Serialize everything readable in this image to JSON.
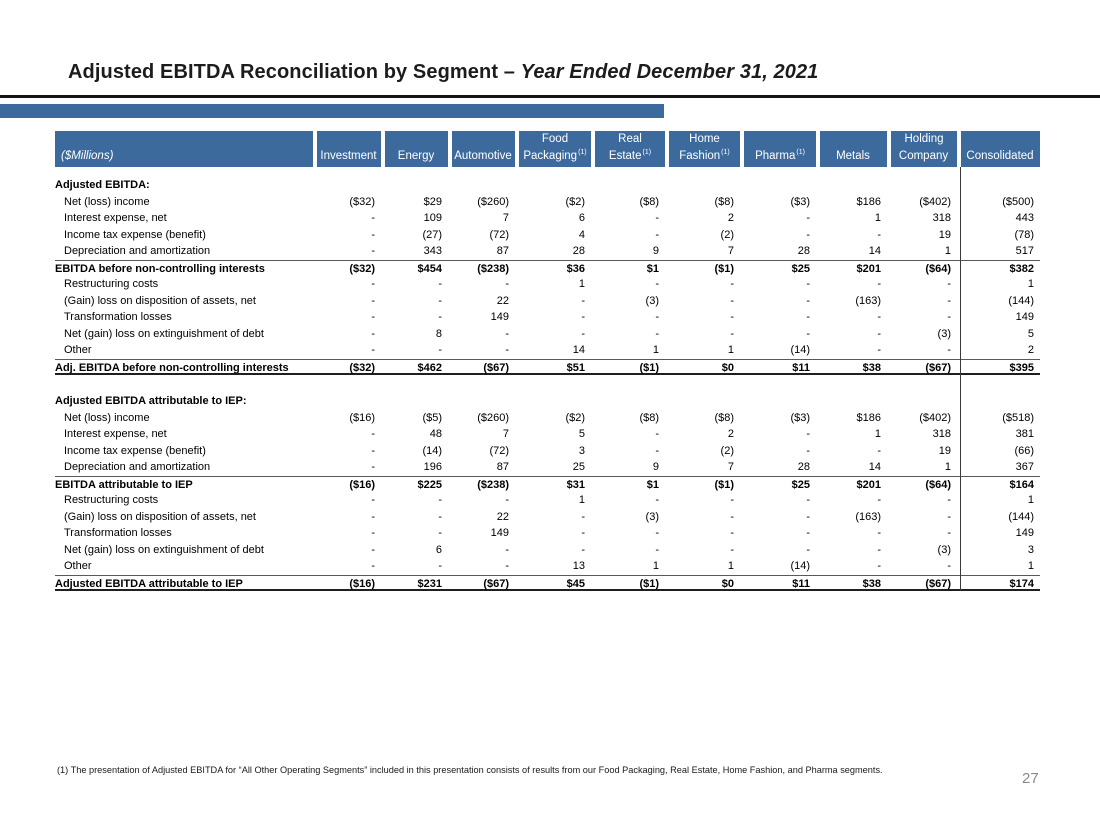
{
  "title": {
    "prefix": "Adjusted EBITDA Reconciliation by Segment – ",
    "italic": "Year Ended December 31, 2021"
  },
  "footnote": "(1) The presentation of Adjusted EBITDA for “All Other Operating Segments” included in this presentation consists of results from our Food Packaging, Real Estate, Home Fashion, and Pharma segments.",
  "page_number": "27",
  "colors": {
    "accent_blue": "#3c6a9c"
  },
  "table": {
    "unit_label": "($Millions)",
    "columns": [
      {
        "line1": "",
        "line2": "Investment",
        "sup": ""
      },
      {
        "line1": "",
        "line2": "Energy",
        "sup": ""
      },
      {
        "line1": "",
        "line2": "Automotive",
        "sup": ""
      },
      {
        "line1": "Food",
        "line2": "Packaging",
        "sup": "(1)"
      },
      {
        "line1": "Real",
        "line2": "Estate",
        "sup": "(1)"
      },
      {
        "line1": "Home",
        "line2": "Fashion",
        "sup": "(1)"
      },
      {
        "line1": "",
        "line2": "Pharma",
        "sup": "(1)"
      },
      {
        "line1": "",
        "line2": "Metals",
        "sup": ""
      },
      {
        "line1": "Holding",
        "line2": "Company",
        "sup": ""
      },
      {
        "line1": "",
        "line2": "Consolidated",
        "sup": ""
      }
    ],
    "rows": [
      {
        "type": "section",
        "label": "Adjusted EBITDA:",
        "values": []
      },
      {
        "type": "item",
        "label": "Net (loss) income",
        "values": [
          "($32)",
          "$29",
          "($260)",
          "($2)",
          "($8)",
          "($8)",
          "($3)",
          "$186",
          "($402)",
          "($500)"
        ]
      },
      {
        "type": "item",
        "label": "Interest expense, net",
        "values": [
          "-",
          "109",
          "7",
          "6",
          "-",
          "2",
          "-",
          "1",
          "318",
          "443"
        ]
      },
      {
        "type": "item",
        "label": "Income tax expense (benefit)",
        "values": [
          "-",
          "(27)",
          "(72)",
          "4",
          "-",
          "(2)",
          "-",
          "-",
          "19",
          "(78)"
        ]
      },
      {
        "type": "item",
        "label": "Depreciation and amortization",
        "values": [
          "-",
          "343",
          "87",
          "28",
          "9",
          "7",
          "28",
          "14",
          "1",
          "517"
        ]
      },
      {
        "type": "total",
        "label": "EBITDA before non-controlling interests",
        "values": [
          "($32)",
          "$454",
          "($238)",
          "$36",
          "$1",
          "($1)",
          "$25",
          "$201",
          "($64)",
          "$382"
        ]
      },
      {
        "type": "item",
        "label": "Restructuring costs",
        "values": [
          "-",
          "-",
          "-",
          "1",
          "-",
          "-",
          "-",
          "-",
          "-",
          "1"
        ]
      },
      {
        "type": "item",
        "label": "(Gain) loss on disposition of assets, net",
        "values": [
          "-",
          "-",
          "22",
          "-",
          "(3)",
          "-",
          "-",
          "(163)",
          "-",
          "(144)"
        ]
      },
      {
        "type": "item",
        "label": "Transformation losses",
        "values": [
          "-",
          "-",
          "149",
          "-",
          "-",
          "-",
          "-",
          "-",
          "-",
          "149"
        ]
      },
      {
        "type": "item",
        "label": "Net (gain) loss on extinguishment of debt",
        "values": [
          "-",
          "8",
          "-",
          "-",
          "-",
          "-",
          "-",
          "-",
          "(3)",
          "5"
        ]
      },
      {
        "type": "item",
        "label": "Other",
        "values": [
          "-",
          "-",
          "-",
          "14",
          "1",
          "1",
          "(14)",
          "-",
          "-",
          "2"
        ]
      },
      {
        "type": "grand",
        "label": "Adj. EBITDA before non-controlling interests",
        "values": [
          "($32)",
          "$462",
          "($67)",
          "$51",
          "($1)",
          "$0",
          "$11",
          "$38",
          "($67)",
          "$395"
        ]
      },
      {
        "type": "spacer",
        "label": "",
        "values": []
      },
      {
        "type": "section",
        "label": "Adjusted EBITDA attributable to IEP:",
        "values": []
      },
      {
        "type": "item",
        "label": "Net (loss) income",
        "values": [
          "($16)",
          "($5)",
          "($260)",
          "($2)",
          "($8)",
          "($8)",
          "($3)",
          "$186",
          "($402)",
          "($518)"
        ]
      },
      {
        "type": "item",
        "label": "Interest expense, net",
        "values": [
          "-",
          "48",
          "7",
          "5",
          "-",
          "2",
          "-",
          "1",
          "318",
          "381"
        ]
      },
      {
        "type": "item",
        "label": "Income tax expense (benefit)",
        "values": [
          "-",
          "(14)",
          "(72)",
          "3",
          "-",
          "(2)",
          "-",
          "-",
          "19",
          "(66)"
        ]
      },
      {
        "type": "item",
        "label": "Depreciation and amortization",
        "values": [
          "-",
          "196",
          "87",
          "25",
          "9",
          "7",
          "28",
          "14",
          "1",
          "367"
        ]
      },
      {
        "type": "total",
        "label": "EBITDA attributable to IEP",
        "values": [
          "($16)",
          "$225",
          "($238)",
          "$31",
          "$1",
          "($1)",
          "$25",
          "$201",
          "($64)",
          "$164"
        ]
      },
      {
        "type": "item",
        "label": "Restructuring costs",
        "values": [
          "-",
          "-",
          "-",
          "1",
          "-",
          "-",
          "-",
          "-",
          "-",
          "1"
        ]
      },
      {
        "type": "item",
        "label": "(Gain) loss on disposition of assets, net",
        "values": [
          "-",
          "-",
          "22",
          "-",
          "(3)",
          "-",
          "-",
          "(163)",
          "-",
          "(144)"
        ]
      },
      {
        "type": "item",
        "label": "Transformation losses",
        "values": [
          "-",
          "-",
          "149",
          "-",
          "-",
          "-",
          "-",
          "-",
          "-",
          "149"
        ]
      },
      {
        "type": "item",
        "label": "Net (gain) loss on extinguishment of debt",
        "values": [
          "-",
          "6",
          "-",
          "-",
          "-",
          "-",
          "-",
          "-",
          "(3)",
          "3"
        ]
      },
      {
        "type": "item",
        "label": "Other",
        "values": [
          "-",
          "-",
          "-",
          "13",
          "1",
          "1",
          "(14)",
          "-",
          "-",
          "1"
        ]
      },
      {
        "type": "grand",
        "label": "Adjusted EBITDA attributable to IEP",
        "values": [
          "($16)",
          "$231",
          "($67)",
          "$45",
          "($1)",
          "$0",
          "$11",
          "$38",
          "($67)",
          "$174"
        ]
      }
    ]
  }
}
